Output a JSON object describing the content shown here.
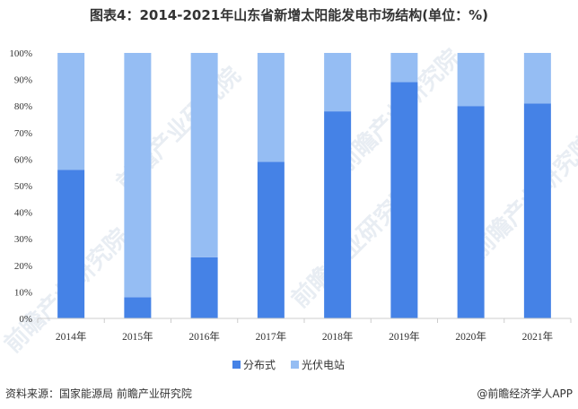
{
  "colors": {
    "series1": "#4582e6",
    "series2": "#95bdf3",
    "axis": "#cccccc",
    "text": "#333333",
    "watermark": "#e8edf3"
  },
  "watermark_text": "前瞻产业研究院",
  "footer": {
    "source": "资料来源：国家能源局 前瞻产业研究院",
    "brand": "@前瞻经济学人APP"
  },
  "chart_data": {
    "type": "bar",
    "stacked": true,
    "title": "图表4：2014-2021年山东省新增太阳能发电市场结构(单位：%)",
    "categories": [
      "2014年",
      "2015年",
      "2016年",
      "2017年",
      "2018年",
      "2019年",
      "2020年",
      "2021年"
    ],
    "series": [
      {
        "name": "分布式",
        "values": [
          56,
          8,
          23,
          59,
          78,
          89,
          80,
          81
        ]
      },
      {
        "name": "光伏电站",
        "values": [
          44,
          92,
          77,
          41,
          22,
          11,
          20,
          19
        ]
      }
    ],
    "ylim": [
      0,
      100
    ],
    "yticks": [
      "0%",
      "10%",
      "20%",
      "30%",
      "40%",
      "50%",
      "60%",
      "70%",
      "80%",
      "90%",
      "100%"
    ],
    "grid": false,
    "legend": "bottom"
  }
}
